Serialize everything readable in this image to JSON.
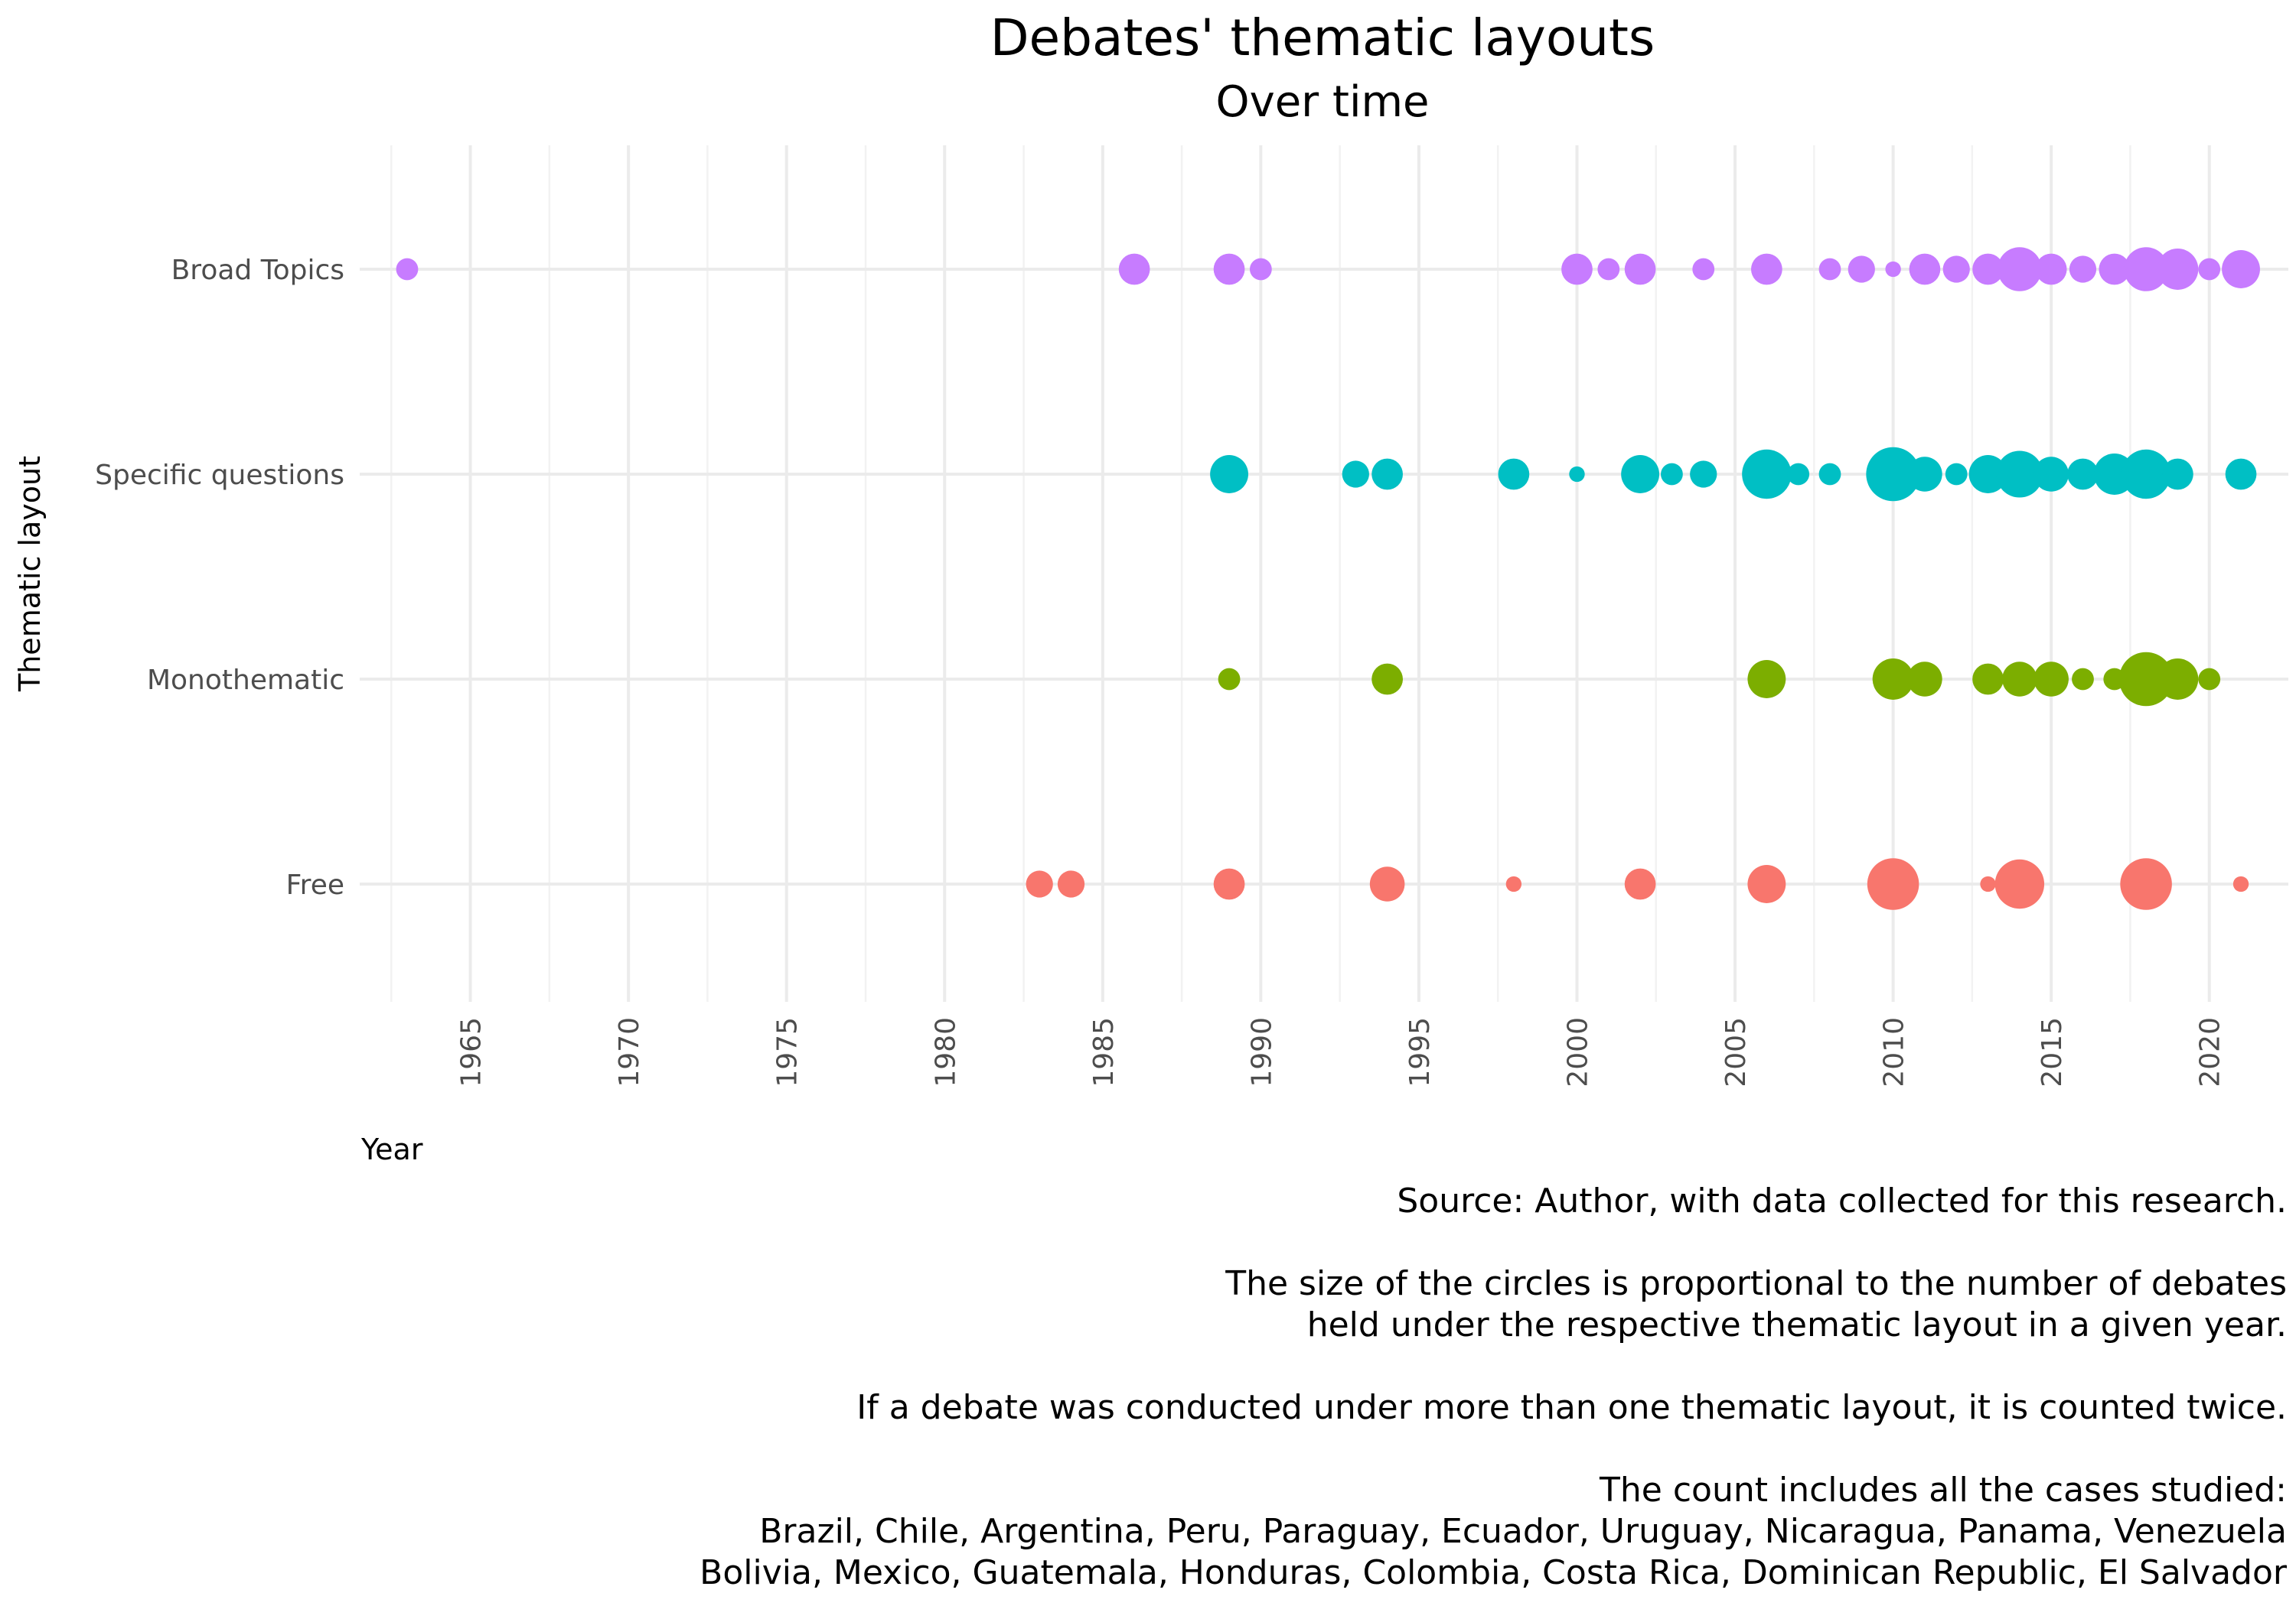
{
  "chart_data": {
    "type": "scatter",
    "title": "Debates' thematic layouts",
    "subtitle": "Over time",
    "xlabel": "Year",
    "ylabel": "Thematic layout",
    "x_ticks": [
      1965,
      1970,
      1975,
      1980,
      1985,
      1990,
      1995,
      2000,
      2005,
      2010,
      2015,
      2020
    ],
    "xlim": [
      1961.5,
      2022.5
    ],
    "grid": true,
    "legend": "none",
    "categories": [
      "Broad Topics",
      "Specific questions",
      "Monothematic",
      "Free"
    ],
    "colors": {
      "Broad Topics": "#C77CFF",
      "Specific questions": "#00BFC4",
      "Monothematic": "#7CAE00",
      "Free": "#F8766D"
    },
    "series": [
      {
        "category": "Broad Topics",
        "points": [
          {
            "year": 1963,
            "count": 1
          },
          {
            "year": 1986,
            "count": 2
          },
          {
            "year": 1989,
            "count": 2
          },
          {
            "year": 1990,
            "count": 1
          },
          {
            "year": 2000,
            "count": 2
          },
          {
            "year": 2001,
            "count": 1
          },
          {
            "year": 2002,
            "count": 2
          },
          {
            "year": 2004,
            "count": 1
          },
          {
            "year": 2006,
            "count": 2
          },
          {
            "year": 2008,
            "count": 1
          },
          {
            "year": 2009,
            "count": 1.5
          },
          {
            "year": 2010,
            "count": 0.5
          },
          {
            "year": 2011,
            "count": 2
          },
          {
            "year": 2012,
            "count": 1.5
          },
          {
            "year": 2013,
            "count": 2
          },
          {
            "year": 2014,
            "count": 4
          },
          {
            "year": 2015,
            "count": 2
          },
          {
            "year": 2016,
            "count": 1.5
          },
          {
            "year": 2017,
            "count": 2
          },
          {
            "year": 2018,
            "count": 4
          },
          {
            "year": 2019,
            "count": 3.5
          },
          {
            "year": 2020,
            "count": 1
          },
          {
            "year": 2021,
            "count": 3
          }
        ]
      },
      {
        "category": "Specific questions",
        "points": [
          {
            "year": 1989,
            "count": 3
          },
          {
            "year": 1993,
            "count": 1.5
          },
          {
            "year": 1994,
            "count": 2
          },
          {
            "year": 1998,
            "count": 2
          },
          {
            "year": 2000,
            "count": 0.5
          },
          {
            "year": 2002,
            "count": 3
          },
          {
            "year": 2003,
            "count": 1
          },
          {
            "year": 2004,
            "count": 1.5
          },
          {
            "year": 2006,
            "count": 5
          },
          {
            "year": 2007,
            "count": 1
          },
          {
            "year": 2008,
            "count": 1
          },
          {
            "year": 2010,
            "count": 6
          },
          {
            "year": 2011,
            "count": 2.5
          },
          {
            "year": 2012,
            "count": 1
          },
          {
            "year": 2013,
            "count": 3
          },
          {
            "year": 2014,
            "count": 4.5
          },
          {
            "year": 2015,
            "count": 2.5
          },
          {
            "year": 2016,
            "count": 2
          },
          {
            "year": 2017,
            "count": 3.5
          },
          {
            "year": 2018,
            "count": 5
          },
          {
            "year": 2019,
            "count": 2
          },
          {
            "year": 2021,
            "count": 2
          }
        ]
      },
      {
        "category": "Monothematic",
        "points": [
          {
            "year": 1989,
            "count": 1
          },
          {
            "year": 1994,
            "count": 2
          },
          {
            "year": 2006,
            "count": 3
          },
          {
            "year": 2010,
            "count": 3.5
          },
          {
            "year": 2011,
            "count": 2.5
          },
          {
            "year": 2013,
            "count": 2
          },
          {
            "year": 2014,
            "count": 2.5
          },
          {
            "year": 2015,
            "count": 2.5
          },
          {
            "year": 2016,
            "count": 1
          },
          {
            "year": 2017,
            "count": 1
          },
          {
            "year": 2018,
            "count": 6
          },
          {
            "year": 2019,
            "count": 3.5
          },
          {
            "year": 2020,
            "count": 1
          }
        ]
      },
      {
        "category": "Free",
        "points": [
          {
            "year": 1983,
            "count": 1.5
          },
          {
            "year": 1984,
            "count": 1.5
          },
          {
            "year": 1989,
            "count": 2
          },
          {
            "year": 1994,
            "count": 2.5
          },
          {
            "year": 1998,
            "count": 0.5
          },
          {
            "year": 2002,
            "count": 2
          },
          {
            "year": 2006,
            "count": 3
          },
          {
            "year": 2010,
            "count": 5.5
          },
          {
            "year": 2013,
            "count": 0.5
          },
          {
            "year": 2014,
            "count": 5
          },
          {
            "year": 2018,
            "count": 5.5
          },
          {
            "year": 2021,
            "count": 0.5
          }
        ]
      }
    ],
    "caption": [
      "Source: Author, with data collected for this research.",
      "",
      "The size of the circles is proportional to the number of debates",
      "held under the respective thematic layout in a given year.",
      "",
      "If a debate was conducted under more than one thematic layout, it is counted twice.",
      "",
      "The count includes all the cases studied:",
      "Brazil, Chile, Argentina, Peru, Paraguay, Ecuador, Uruguay, Nicaragua, Panama, Venezuela",
      "Bolivia, Mexico, Guatemala, Honduras, Colombia, Costa Rica, Dominican Republic, El Salvador"
    ]
  }
}
